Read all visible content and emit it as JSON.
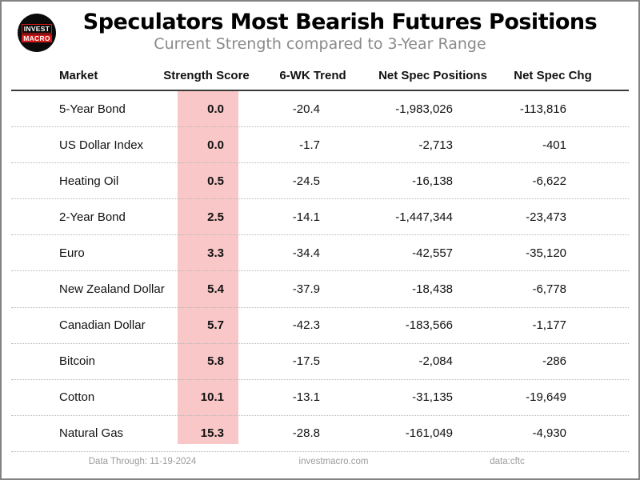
{
  "header": {
    "title": "Speculators Most Bearish Futures Positions",
    "subtitle": "Current Strength compared to 3-Year Range",
    "logo": {
      "line1": "INVEST",
      "line2": "MACRO"
    }
  },
  "table": {
    "columns": [
      "Market",
      "Strength Score",
      "6-WK Trend",
      "Net Spec Positions",
      "Net Spec Chg"
    ],
    "rows": [
      {
        "market": "5-Year Bond",
        "score": "0.0",
        "trend": "-20.4",
        "positions": "-1,983,026",
        "change": "-113,816"
      },
      {
        "market": "US Dollar Index",
        "score": "0.0",
        "trend": "-1.7",
        "positions": "-2,713",
        "change": "-401"
      },
      {
        "market": "Heating Oil",
        "score": "0.5",
        "trend": "-24.5",
        "positions": "-16,138",
        "change": "-6,622"
      },
      {
        "market": "2-Year Bond",
        "score": "2.5",
        "trend": "-14.1",
        "positions": "-1,447,344",
        "change": "-23,473"
      },
      {
        "market": "Euro",
        "score": "3.3",
        "trend": "-34.4",
        "positions": "-42,557",
        "change": "-35,120"
      },
      {
        "market": "New Zealand Dollar",
        "score": "5.4",
        "trend": "-37.9",
        "positions": "-18,438",
        "change": "-6,778"
      },
      {
        "market": "Canadian Dollar",
        "score": "5.7",
        "trend": "-42.3",
        "positions": "-183,566",
        "change": "-1,177"
      },
      {
        "market": "Bitcoin",
        "score": "5.8",
        "trend": "-17.5",
        "positions": "-2,084",
        "change": "-286"
      },
      {
        "market": "Cotton",
        "score": "10.1",
        "trend": "-13.1",
        "positions": "-31,135",
        "change": "-19,649"
      },
      {
        "market": "Natural Gas",
        "score": "15.3",
        "trend": "-28.8",
        "positions": "-161,049",
        "change": "-4,930"
      }
    ]
  },
  "footer": {
    "data_through": "Data Through: 11-19-2024",
    "website": "investmacro.com",
    "source": "data:cftc"
  },
  "colors": {
    "score_highlight": "#f9c7c7",
    "logo_red": "#d01818",
    "subtitle_gray": "#8a8a8a",
    "footer_gray": "#9c9c9c"
  },
  "chart_data": {
    "type": "table",
    "title": "Speculators Most Bearish Futures Positions",
    "subtitle": "Current Strength compared to 3-Year Range",
    "columns": [
      "Market",
      "Strength Score",
      "6-WK Trend",
      "Net Spec Positions",
      "Net Spec Chg"
    ],
    "rows": [
      [
        "5-Year Bond",
        0.0,
        -20.4,
        -1983026,
        -113816
      ],
      [
        "US Dollar Index",
        0.0,
        -1.7,
        -2713,
        -401
      ],
      [
        "Heating Oil",
        0.5,
        -24.5,
        -16138,
        -6622
      ],
      [
        "2-Year Bond",
        2.5,
        -14.1,
        -1447344,
        -23473
      ],
      [
        "Euro",
        3.3,
        -34.4,
        -42557,
        -35120
      ],
      [
        "New Zealand Dollar",
        5.4,
        -37.9,
        -18438,
        -6778
      ],
      [
        "Canadian Dollar",
        5.7,
        -42.3,
        -183566,
        -1177
      ],
      [
        "Bitcoin",
        5.8,
        -17.5,
        -2084,
        -286
      ],
      [
        "Cotton",
        10.1,
        -13.1,
        -31135,
        -19649
      ],
      [
        "Natural Gas",
        15.3,
        -28.8,
        -161049,
        -4930
      ]
    ],
    "highlighted_column": "Strength Score",
    "notes": [
      "Data Through: 11-19-2024",
      "investmacro.com",
      "data:cftc"
    ]
  }
}
